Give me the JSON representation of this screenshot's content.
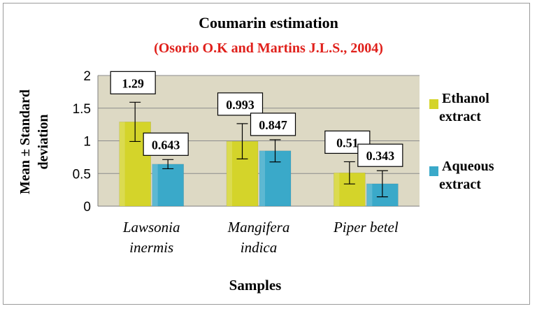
{
  "chart_data": {
    "type": "bar",
    "title": "Coumarin estimation",
    "subtitle": "(Osorio O.K and Martins J.L.S., 2004)",
    "xlabel": "Samples",
    "ylabel_line1": "Mean ± Standard",
    "ylabel_line2": "deviation",
    "ylim": [
      0,
      2
    ],
    "yticks": [
      "0",
      "0.5",
      "1",
      "1.5",
      "2"
    ],
    "grid": true,
    "legend_position": "right",
    "categories": [
      {
        "line1": "Lawsonia",
        "line2": "inermis"
      },
      {
        "line1": "Mangifera",
        "line2": "indica"
      },
      {
        "line1": "Piper betel",
        "line2": ""
      }
    ],
    "series": [
      {
        "name_line1": "Ethanol",
        "name_line2": "extract",
        "color": "#d4d42a",
        "values": [
          1.29,
          0.993,
          0.51
        ],
        "errors": [
          0.3,
          0.27,
          0.17
        ],
        "labels": [
          "1.29",
          "0.993",
          "0.51"
        ]
      },
      {
        "name_line1": "Aqueous",
        "name_line2": "extract",
        "color": "#3aa9c9",
        "values": [
          0.643,
          0.847,
          0.343
        ],
        "errors": [
          0.07,
          0.17,
          0.2
        ],
        "labels": [
          "0.643",
          "0.847",
          "0.343"
        ]
      }
    ]
  }
}
